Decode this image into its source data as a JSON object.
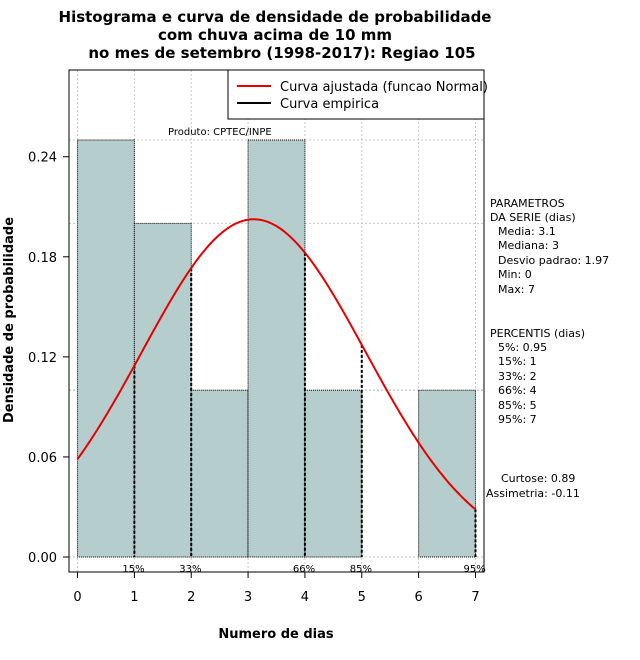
{
  "title_lines": [
    "Histograma e curva de densidade de probabilidade",
    "com chuva acima de 10 mm",
    "no mes de setembro (1998-2017): Regiao 105"
  ],
  "product_label": "Produto: CPTEC/INPE",
  "legend": [
    {
      "label": "Curva ajustada (funcao Normal)",
      "color": "#e60000"
    },
    {
      "label": "Curva empirica",
      "color": "#000000"
    }
  ],
  "parameters": {
    "heading": [
      "PARAMETROS",
      "DA SERIE (dias)"
    ],
    "lines": [
      "Media: 3.1",
      "Mediana: 3",
      "Desvio padrao: 1.97",
      "Min: 0",
      "Max: 7"
    ]
  },
  "percentiles": {
    "heading": "PERCENTIS (dias)",
    "lines": [
      "5%: 0.95",
      "15%: 1",
      "33%: 2",
      "66%: 4",
      "85%: 5",
      "95%: 7"
    ]
  },
  "stats": [
    "Curtose: 0.89",
    "Assimetria: -0.11"
  ],
  "chart_data": {
    "type": "bar",
    "xlabel": "Numero de dias",
    "ylabel": "Densidade de probabilidade",
    "xlim": [
      -0.15,
      7.15
    ],
    "ylim": [
      -0.009,
      0.292
    ],
    "xticks": [
      0,
      1,
      2,
      3,
      4,
      5,
      6,
      7
    ],
    "yticks": [
      0.0,
      0.06,
      0.12,
      0.18,
      0.24
    ],
    "ytick_labels": [
      "0.00",
      "0.06",
      "0.12",
      "0.18",
      "0.24"
    ],
    "bins": [
      {
        "x0": 0,
        "x1": 1,
        "value": 0.25
      },
      {
        "x0": 1,
        "x1": 2,
        "value": 0.2
      },
      {
        "x0": 2,
        "x1": 3,
        "value": 0.1
      },
      {
        "x0": 3,
        "x1": 4,
        "value": 0.25
      },
      {
        "x0": 4,
        "x1": 5,
        "value": 0.1
      },
      {
        "x0": 5,
        "x1": 6,
        "value": 0.0
      },
      {
        "x0": 6,
        "x1": 7,
        "value": 0.1
      }
    ],
    "bar_color": "#b6cdcd",
    "normal_curve": {
      "name": "Curva ajustada (funcao Normal)",
      "mean": 3.1,
      "sd": 1.97,
      "color": "#e60000"
    },
    "percentile_markers": [
      {
        "label": "15%",
        "x": 1
      },
      {
        "label": "33%",
        "x": 2
      },
      {
        "label": "66%",
        "x": 4
      },
      {
        "label": "85%",
        "x": 5
      },
      {
        "label": "95%",
        "x": 7
      }
    ],
    "grid": true
  }
}
